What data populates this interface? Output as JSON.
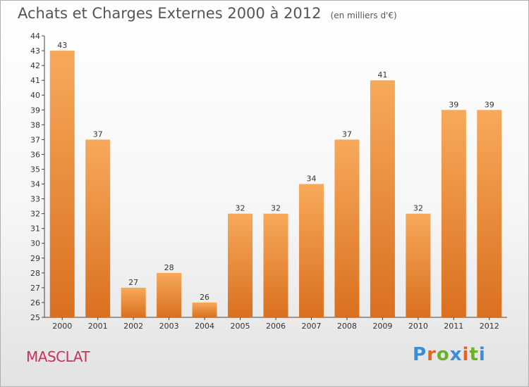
{
  "header": {
    "title": "Achats et Charges Externes 2000 à 2012",
    "unit": "(en milliers d'€)"
  },
  "footer": {
    "commune": "MASCLAT",
    "logo": [
      "P",
      "r",
      "o",
      "x",
      "i",
      "t",
      "i"
    ]
  },
  "colors": {
    "bar_top": "#f7a95a",
    "bar_bottom": "#d9701f",
    "axis": "#444444",
    "title": "#555555",
    "commune": "#c8325a"
  },
  "chart_data": {
    "type": "bar",
    "title": "Achats et Charges Externes 2000 à 2012",
    "subtitle": "(en milliers d'€)",
    "categories": [
      "2000",
      "2001",
      "2002",
      "2003",
      "2004",
      "2005",
      "2006",
      "2007",
      "2008",
      "2009",
      "2010",
      "2011",
      "2012"
    ],
    "values": [
      43,
      37,
      27,
      28,
      26,
      32,
      32,
      34,
      37,
      41,
      32,
      39,
      39
    ],
    "ylim": [
      25,
      44
    ],
    "yticks": [
      25,
      26,
      27,
      28,
      29,
      30,
      31,
      32,
      33,
      34,
      35,
      36,
      37,
      38,
      39,
      40,
      41,
      42,
      43,
      44
    ],
    "data_labels": true,
    "grid": false,
    "legend": "none"
  }
}
